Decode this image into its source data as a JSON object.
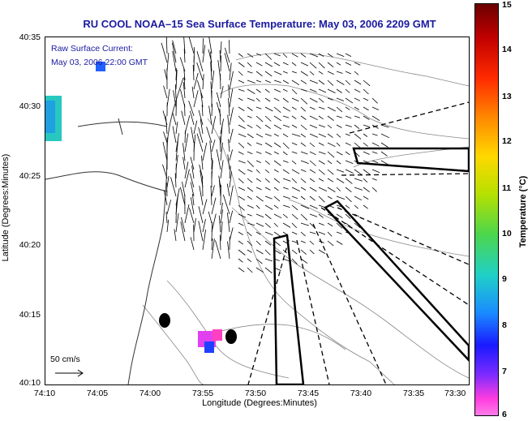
{
  "title": "RU COOL  NOAA–15  Sea Surface Temperature:  May 03, 2006 2209 GMT",
  "annotation": {
    "line1": "Raw Surface Current:",
    "line2": "May 03, 2006 22:00 GMT"
  },
  "scale_label": "50 cm/s",
  "axes": {
    "xlabel": "Longitude (Degrees:Minutes)",
    "ylabel": "Latitude (Degrees:Minutes)",
    "xticks": [
      "74:10",
      "74:05",
      "74:00",
      "73:55",
      "73:50",
      "73:45",
      "73:40",
      "73:35",
      "73:30"
    ],
    "yticks": [
      "40:35",
      "40:30",
      "40:25",
      "40:20",
      "40:15",
      "40:10"
    ]
  },
  "colorbar": {
    "label": "Temperature (°C)",
    "ticks": [
      "15",
      "14",
      "13",
      "12",
      "11",
      "10",
      "9",
      "8",
      "7",
      "6"
    ],
    "colors": {
      "max": "#6b0000",
      "mid": "#b8e000",
      "min": "#ff7ee8"
    }
  },
  "colors": {
    "title": "#1a1aa0",
    "land": "#ffffff",
    "coastline": "#333333",
    "bathymetry": "#888888"
  }
}
